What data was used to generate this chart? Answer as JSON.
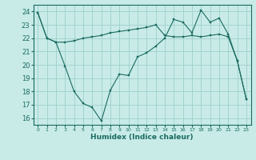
{
  "xlabel": "Humidex (Indice chaleur)",
  "bg_color": "#c8ebe8",
  "grid_color": "#9dcfca",
  "line_color": "#1a6b60",
  "marker_color": "#1a6b60",
  "xlim": [
    -0.5,
    23.5
  ],
  "ylim": [
    15.5,
    24.5
  ],
  "yticks": [
    16,
    17,
    18,
    19,
    20,
    21,
    22,
    23,
    24
  ],
  "xticks": [
    0,
    1,
    2,
    3,
    4,
    5,
    6,
    7,
    8,
    9,
    10,
    11,
    12,
    13,
    14,
    15,
    16,
    17,
    18,
    19,
    20,
    21,
    22,
    23
  ],
  "series1_x": [
    0,
    1,
    2,
    3,
    4,
    5,
    6,
    7,
    8,
    9,
    10,
    11,
    12,
    13,
    14,
    15,
    16,
    17,
    18,
    19,
    20,
    21,
    22,
    23
  ],
  "series1_y": [
    23.9,
    22.0,
    21.7,
    21.7,
    21.8,
    22.0,
    22.1,
    22.2,
    22.4,
    22.5,
    22.6,
    22.7,
    22.8,
    23.0,
    22.2,
    22.1,
    22.1,
    22.2,
    22.1,
    22.2,
    22.3,
    22.1,
    20.3,
    17.4
  ],
  "series2_x": [
    0,
    1,
    2,
    3,
    4,
    5,
    6,
    7,
    8,
    9,
    10,
    11,
    12,
    13,
    14,
    15,
    16,
    17,
    18,
    19,
    20,
    21,
    22,
    23
  ],
  "series2_y": [
    23.9,
    22.0,
    21.7,
    19.9,
    18.0,
    17.1,
    16.8,
    15.8,
    18.1,
    19.3,
    19.2,
    20.6,
    20.9,
    21.4,
    22.0,
    23.4,
    23.2,
    22.4,
    24.1,
    23.2,
    23.5,
    22.3,
    20.3,
    17.4
  ]
}
